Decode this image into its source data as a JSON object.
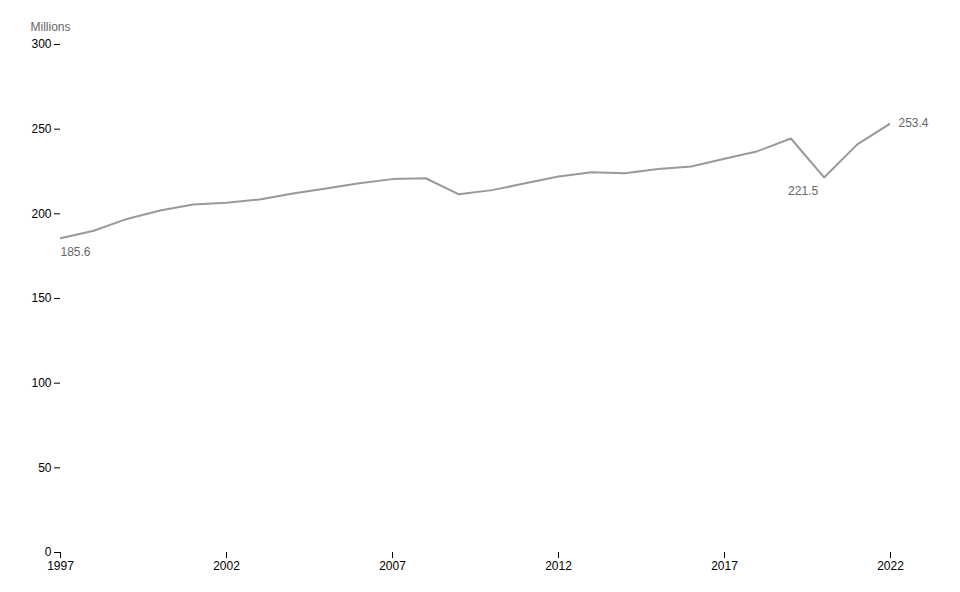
{
  "chart_data": {
    "type": "line",
    "ylabel": "Millions",
    "x": [
      1997,
      1998,
      1999,
      2000,
      2001,
      2002,
      2003,
      2004,
      2005,
      2006,
      2007,
      2008,
      2009,
      2010,
      2011,
      2012,
      2013,
      2014,
      2015,
      2016,
      2017,
      2018,
      2019,
      2020,
      2021,
      2022
    ],
    "values": [
      185.6,
      190.0,
      197.0,
      202.0,
      205.5,
      206.5,
      208.5,
      212.0,
      215.0,
      218.0,
      220.5,
      221.0,
      211.5,
      214.0,
      218.0,
      222.0,
      224.5,
      224.0,
      226.5,
      228.0,
      232.5,
      237.0,
      244.5,
      221.5,
      241.0,
      253.4
    ],
    "color": "#999999",
    "xlim": [
      1997,
      2022
    ],
    "xticks": [
      1997,
      2002,
      2007,
      2012,
      2017,
      2022
    ],
    "ylim": [
      0,
      300
    ],
    "yticks": [
      0,
      50,
      100,
      150,
      200,
      250,
      300
    ],
    "grid": false,
    "annotations": [
      {
        "x": 1997,
        "y": 185.6,
        "text": "185.6"
      },
      {
        "x": 2020,
        "y": 221.5,
        "text": "221.5"
      },
      {
        "x": 2022,
        "y": 253.4,
        "text": "253.4"
      }
    ]
  }
}
